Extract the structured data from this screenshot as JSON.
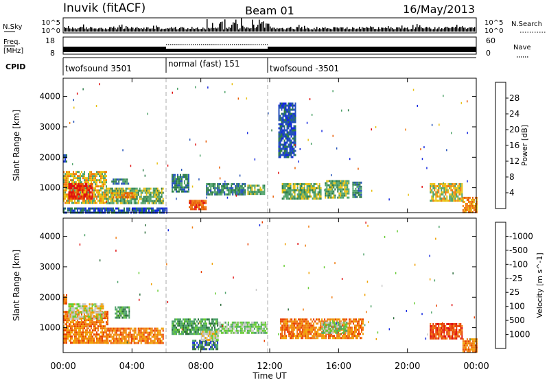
{
  "header": {
    "station": "Inuvik (fitACF)",
    "beam": "Beam 01",
    "date": "16/May/2013"
  },
  "noise_panel": {
    "left_label": "N.Sky",
    "left_ticks": [
      "10^5",
      "10^0"
    ],
    "right_ticks": [
      "10^5",
      "10^0"
    ],
    "right_label": "N.Search"
  },
  "freq_panel": {
    "label_line1": "Freq.",
    "label_line2": "[MHz]",
    "left_ticks": [
      "18",
      "8"
    ],
    "right_ticks": [
      "60",
      "0"
    ],
    "right_label": "Nave"
  },
  "cpid": {
    "label": "CPID",
    "segments": [
      {
        "label": "twofsound 3501",
        "start_hour": 0,
        "end_hour": 6
      },
      {
        "label": "normal (fast) 151",
        "start_hour": 6,
        "end_hour": 12
      },
      {
        "label": "twofsound -3501",
        "start_hour": 12,
        "end_hour": 24
      }
    ]
  },
  "x_axis": {
    "label": "Time UT",
    "range_hours": [
      0,
      24
    ],
    "ticks": [
      "00:00",
      "04:00",
      "08:00",
      "12:00",
      "16:00",
      "20:00",
      "00:00"
    ]
  },
  "chart_data": [
    {
      "type": "heatmap",
      "ylabel": "Slant Range [km]",
      "y_ticks": [
        1000,
        2000,
        3000,
        4000
      ],
      "ylim": [
        180,
        4600
      ],
      "xlim_hours": [
        0,
        24
      ],
      "colorbar": {
        "label": "Power [dB]",
        "ticks": [
          "4",
          "8",
          "12",
          "16",
          "20",
          "24",
          "28"
        ],
        "colors": [
          "#1428e0",
          "#2452b8",
          "#2e7d4a",
          "#4fa36a",
          "#e8c010",
          "#f07c10",
          "#e85a00",
          "#e01010"
        ]
      },
      "regions": [
        {
          "t0": 0.0,
          "t1": 2.5,
          "r0": 500,
          "r1": 1550,
          "level": 4
        },
        {
          "t0": 0.3,
          "t1": 1.7,
          "r0": 650,
          "r1": 1150,
          "level": 7
        },
        {
          "t0": 0.0,
          "t1": 0.2,
          "r0": 1850,
          "r1": 2100,
          "level": 1
        },
        {
          "t0": 2.5,
          "t1": 5.8,
          "r0": 500,
          "r1": 1000,
          "level": 3
        },
        {
          "t0": 2.8,
          "t1": 4.2,
          "r0": 650,
          "r1": 850,
          "level": 5
        },
        {
          "t0": 2.8,
          "t1": 3.8,
          "r0": 1100,
          "r1": 1300,
          "level": 2
        },
        {
          "t0": 0.0,
          "t1": 6.0,
          "r0": 200,
          "r1": 350,
          "level": 1
        },
        {
          "t0": 6.3,
          "t1": 7.3,
          "r0": 850,
          "r1": 1450,
          "level": 2
        },
        {
          "t0": 7.3,
          "t1": 8.3,
          "r0": 300,
          "r1": 600,
          "level": 6
        },
        {
          "t0": 8.3,
          "t1": 10.6,
          "r0": 800,
          "r1": 1150,
          "level": 2
        },
        {
          "t0": 10.7,
          "t1": 11.7,
          "r0": 800,
          "r1": 1100,
          "level": 3
        },
        {
          "t0": 12.7,
          "t1": 15.0,
          "r0": 650,
          "r1": 1150,
          "level": 3
        },
        {
          "t0": 15.2,
          "t1": 16.6,
          "r0": 700,
          "r1": 1250,
          "level": 3
        },
        {
          "t0": 16.8,
          "t1": 17.3,
          "r0": 700,
          "r1": 1200,
          "level": 2
        },
        {
          "t0": 21.3,
          "t1": 23.2,
          "r0": 600,
          "r1": 1150,
          "level": 4
        },
        {
          "t0": 23.2,
          "t1": 24.0,
          "r0": 200,
          "r1": 700,
          "level": 5
        },
        {
          "t0": 12.5,
          "t1": 13.5,
          "r0": 2000,
          "r1": 3800,
          "level": 1
        }
      ]
    },
    {
      "type": "heatmap",
      "ylabel": "Slant Range [km]",
      "y_ticks": [
        1000,
        2000,
        3000,
        4000
      ],
      "ylim": [
        180,
        4600
      ],
      "xlim_hours": [
        0,
        24
      ],
      "colorbar": {
        "label": "Velocity [m s^-1]",
        "ticks": [
          "1000",
          "500",
          "100",
          "25",
          "-25",
          "-100",
          "-500",
          "-1000"
        ],
        "colors": [
          "#1428e0",
          "#2e6e3e",
          "#4fa36a",
          "#66cc33",
          "#c8c8c8",
          "#f0a000",
          "#f07c10",
          "#e84000",
          "#e01010"
        ]
      },
      "regions": [
        {
          "t0": 0.0,
          "t1": 2.6,
          "r0": 500,
          "r1": 1550,
          "level": 6
        },
        {
          "t0": 0.3,
          "t1": 2.3,
          "r0": 1300,
          "r1": 1800,
          "level": 4
        },
        {
          "t0": 0.0,
          "t1": 0.2,
          "r0": 1800,
          "r1": 2100,
          "level": 6
        },
        {
          "t0": 2.5,
          "t1": 5.8,
          "r0": 500,
          "r1": 1000,
          "level": 6
        },
        {
          "t0": 3.0,
          "t1": 3.8,
          "r0": 1350,
          "r1": 1700,
          "level": 2
        },
        {
          "t0": 6.3,
          "t1": 9.0,
          "r0": 800,
          "r1": 1300,
          "level": 2
        },
        {
          "t0": 7.5,
          "t1": 9.0,
          "r0": 300,
          "r1": 600,
          "level": 1
        },
        {
          "t0": 8.0,
          "t1": 9.0,
          "r0": 600,
          "r1": 900,
          "level": 4
        },
        {
          "t0": 9.0,
          "t1": 11.8,
          "r0": 800,
          "r1": 1200,
          "level": 3
        },
        {
          "t0": 12.6,
          "t1": 17.4,
          "r0": 650,
          "r1": 1300,
          "level": 6
        },
        {
          "t0": 15.0,
          "t1": 16.5,
          "r0": 800,
          "r1": 1200,
          "level": 3
        },
        {
          "t0": 21.3,
          "t1": 23.2,
          "r0": 650,
          "r1": 1150,
          "level": 7
        },
        {
          "t0": 23.2,
          "t1": 24.0,
          "r0": 200,
          "r1": 650,
          "level": 6
        }
      ]
    }
  ]
}
